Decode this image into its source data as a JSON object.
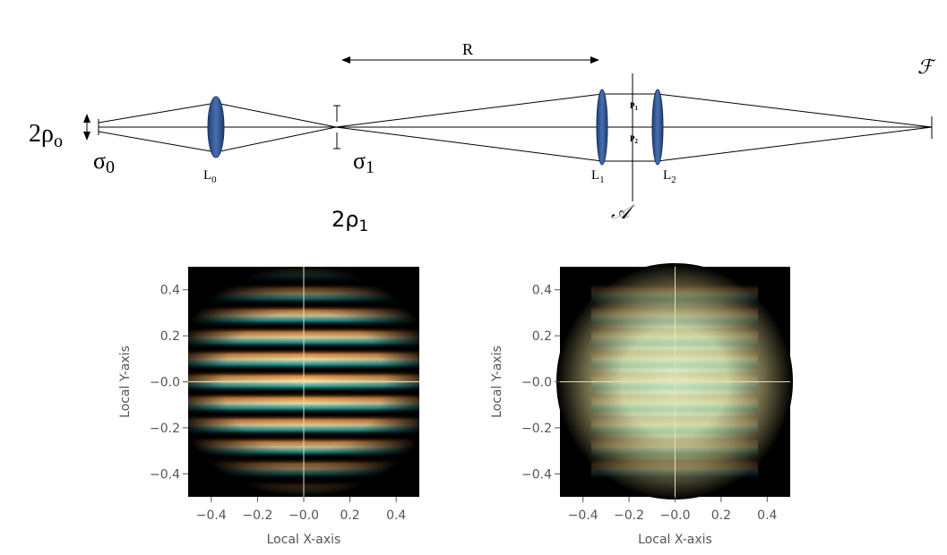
{
  "diagram": {
    "rho0": {
      "main": "2ρ",
      "sub": "o"
    },
    "sigma0": {
      "main": "σ",
      "sub": "0"
    },
    "lens0": {
      "main": "L",
      "sub": "0"
    },
    "sigma1": {
      "main": "σ",
      "sub": "1"
    },
    "rho1": {
      "main": "2ρ",
      "sub": "1"
    },
    "distance": "R",
    "lens1": {
      "main": "L",
      "sub": "1"
    },
    "lens2": {
      "main": "L",
      "sub": "2"
    },
    "point1": {
      "main": "P",
      "sub": "1"
    },
    "point2": {
      "main": "P",
      "sub": "2"
    },
    "aperture": "𝒜",
    "focal": "ℱ"
  },
  "chart_data": [
    {
      "type": "heatmap",
      "xlabel": "Local X-axis",
      "ylabel": "Local Y-axis",
      "xlim": [
        -0.5,
        0.5
      ],
      "ylim": [
        -0.5,
        0.5
      ],
      "xticks": [
        {
          "value": -0.4,
          "label": "−0.4"
        },
        {
          "value": -0.2,
          "label": "−0.2"
        },
        {
          "value": 0,
          "label": "−0.0"
        },
        0.2,
        0.4
      ],
      "yticks": [
        {
          "value": -0.4,
          "label": "−0.4"
        },
        {
          "value": -0.2,
          "label": "−0.2"
        },
        {
          "value": 0,
          "label": "−0.0"
        },
        0.2,
        0.4
      ]
    },
    {
      "type": "heatmap",
      "xlabel": "Local X-axis",
      "ylabel": "Local Y-axis",
      "xlim": [
        -0.5,
        0.5
      ],
      "ylim": [
        -0.5,
        0.5
      ],
      "xticks": [
        {
          "value": -0.4,
          "label": "−0.4"
        },
        {
          "value": -0.2,
          "label": "−0.2"
        },
        {
          "value": 0,
          "label": "−0.0"
        },
        0.2,
        0.4
      ],
      "yticks": [
        {
          "value": -0.4,
          "label": "−0.4"
        },
        {
          "value": -0.2,
          "label": "−0.2"
        },
        {
          "value": 0,
          "label": "−0.0"
        },
        0.2,
        0.4
      ]
    }
  ]
}
